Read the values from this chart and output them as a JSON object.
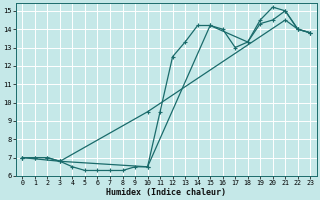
{
  "xlabel": "Humidex (Indice chaleur)",
  "bg_color": "#c5e8e8",
  "grid_color": "#ffffff",
  "line_color": "#1a6b6b",
  "xlim": [
    -0.5,
    23.5
  ],
  "ylim": [
    6,
    15.4
  ],
  "xticks": [
    0,
    1,
    2,
    3,
    4,
    5,
    6,
    7,
    8,
    9,
    10,
    11,
    12,
    13,
    14,
    15,
    16,
    17,
    18,
    19,
    20,
    21,
    22,
    23
  ],
  "yticks": [
    6,
    7,
    8,
    9,
    10,
    11,
    12,
    13,
    14,
    15
  ],
  "line1_x": [
    0,
    1,
    2,
    3,
    4,
    5,
    6,
    7,
    8,
    9,
    10,
    11,
    12,
    13,
    14,
    15,
    16,
    17,
    18,
    19,
    20,
    21,
    22,
    23
  ],
  "line1_y": [
    7.0,
    7.0,
    7.0,
    6.8,
    6.5,
    6.3,
    6.3,
    6.3,
    6.3,
    6.5,
    6.5,
    9.5,
    12.5,
    13.3,
    14.2,
    14.2,
    14.0,
    13.0,
    13.3,
    14.5,
    15.2,
    15.0,
    14.0,
    13.8
  ],
  "line2_x": [
    0,
    1,
    2,
    3,
    10,
    21,
    22,
    23
  ],
  "line2_y": [
    7.0,
    7.0,
    7.0,
    6.8,
    9.5,
    14.5,
    14.0,
    13.8
  ],
  "line3_x": [
    0,
    3,
    10,
    15,
    18,
    19,
    20,
    21,
    22,
    23
  ],
  "line3_y": [
    7.0,
    6.8,
    6.5,
    14.2,
    13.3,
    14.3,
    14.5,
    15.0,
    14.0,
    13.8
  ]
}
